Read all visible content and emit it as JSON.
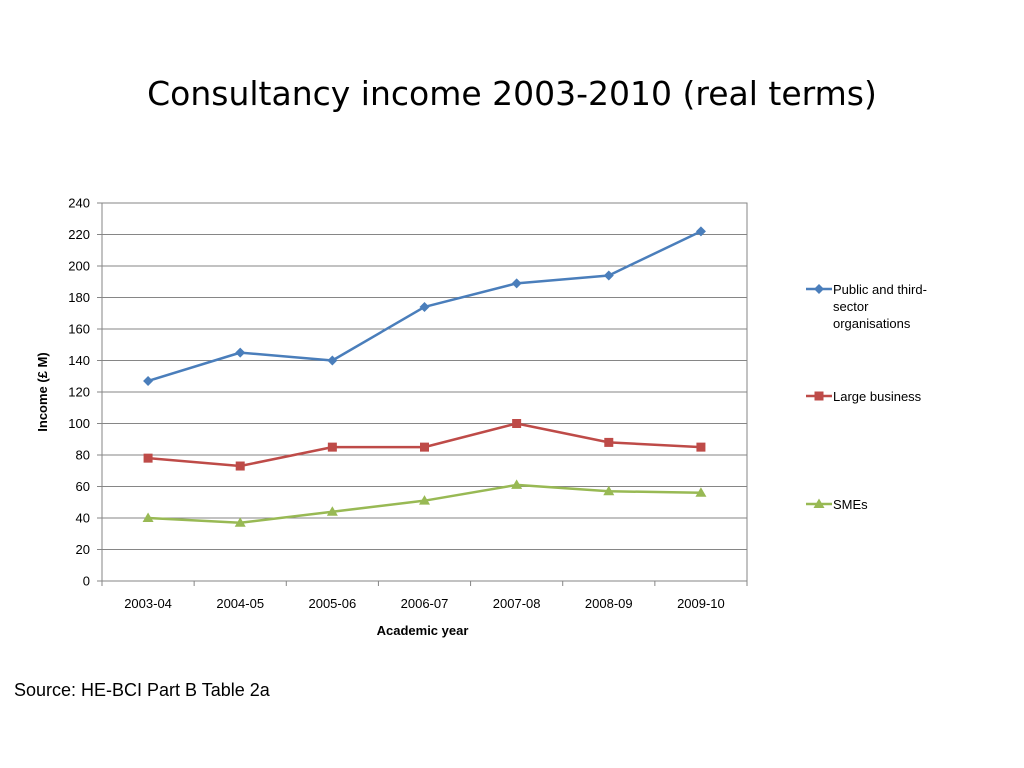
{
  "slide": {
    "title": "Consultancy income 2003-2010 (real terms)",
    "source": "Source: HE-BCI Part B Table 2a"
  },
  "chart_data": {
    "type": "line",
    "title": "",
    "xlabel": "Academic year",
    "ylabel": "Income (£ M)",
    "categories": [
      "2003-04",
      "2004-05",
      "2005-06",
      "2006-07",
      "2007-08",
      "2008-09",
      "2009-10"
    ],
    "ylim": [
      0,
      240
    ],
    "yticks": [
      0,
      20,
      40,
      60,
      80,
      100,
      120,
      140,
      160,
      180,
      200,
      220,
      240
    ],
    "grid": true,
    "legend_position": "right",
    "series": [
      {
        "name": "Public and third-sector organisations",
        "legend_lines": [
          "Public and third-",
          "sector",
          "organisations"
        ],
        "values": [
          127,
          145,
          140,
          174,
          189,
          194,
          222
        ],
        "color": "#4a7ebb",
        "marker": "diamond"
      },
      {
        "name": "Large business",
        "legend_lines": [
          "Large business"
        ],
        "values": [
          78,
          73,
          85,
          85,
          100,
          88,
          85
        ],
        "color": "#be4b48",
        "marker": "square"
      },
      {
        "name": "SMEs",
        "legend_lines": [
          "SMEs"
        ],
        "values": [
          40,
          37,
          44,
          51,
          61,
          57,
          56
        ],
        "color": "#98b954",
        "marker": "triangle"
      }
    ]
  }
}
